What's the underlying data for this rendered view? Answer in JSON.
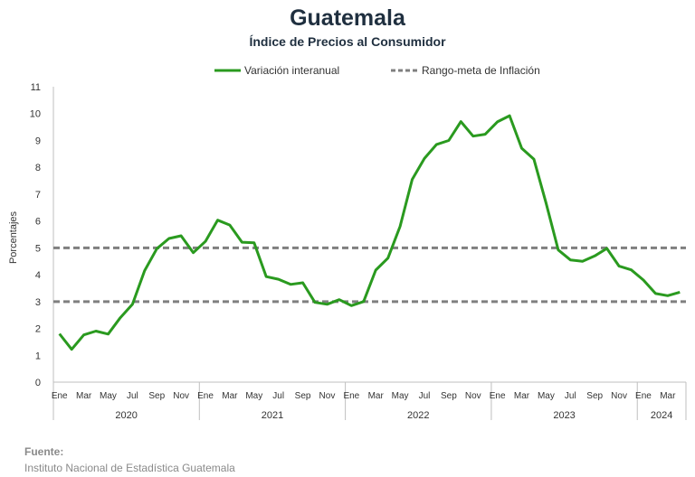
{
  "header": {
    "title": "Guatemala",
    "subtitle": "Índice de Precios al Consumidor"
  },
  "source": {
    "label": "Fuente:",
    "text": "Instituto Nacional de Estadística Guatemala"
  },
  "chart_data": {
    "type": "line",
    "ylabel": "Porcentajes",
    "ylim": [
      0,
      11
    ],
    "yticks": [
      0,
      1,
      2,
      3,
      4,
      5,
      6,
      7,
      8,
      9,
      10,
      11
    ],
    "grid": false,
    "legend_position": "top",
    "month_labels": [
      "Ene",
      "",
      "Mar",
      "",
      "May",
      "",
      "Jul",
      "",
      "Sep",
      "",
      "Nov",
      "",
      "Ene",
      "",
      "Mar",
      "",
      "May",
      "",
      "Jul",
      "",
      "Sep",
      "",
      "Nov",
      "",
      "Ene",
      "",
      "Mar",
      "",
      "May",
      "",
      "Jul",
      "",
      "Sep",
      "",
      "Nov",
      "",
      "Ene",
      "",
      "Mar",
      "",
      "May",
      "",
      "Jul",
      "",
      "Sep",
      "",
      "Nov",
      "",
      "Ene",
      "",
      "Mar",
      ""
    ],
    "years": [
      {
        "label": "2020",
        "months": 12
      },
      {
        "label": "2021",
        "months": 12
      },
      {
        "label": "2022",
        "months": 12
      },
      {
        "label": "2023",
        "months": 12
      },
      {
        "label": "2024",
        "months": 4
      }
    ],
    "series": [
      {
        "name": "Variación interanual",
        "color": "#2a9a1f",
        "style": "solid",
        "values": [
          1.8,
          1.22,
          1.76,
          1.9,
          1.79,
          2.4,
          2.9,
          4.15,
          4.97,
          5.35,
          5.45,
          4.82,
          5.24,
          6.03,
          5.85,
          5.21,
          5.19,
          3.93,
          3.83,
          3.64,
          3.7,
          2.97,
          2.9,
          3.07,
          2.85,
          3.0,
          4.17,
          4.62,
          5.8,
          7.55,
          8.33,
          8.85,
          9.0,
          9.7,
          9.16,
          9.23,
          9.69,
          9.92,
          8.71,
          8.3,
          6.67,
          4.92,
          4.55,
          4.5,
          4.7,
          4.98,
          4.32,
          4.18,
          3.8,
          3.3,
          3.22,
          3.35
        ]
      },
      {
        "name": "Rango-meta de Inflación",
        "color": "#7f7f7f",
        "style": "dashed",
        "lower": 3,
        "upper": 5
      }
    ]
  }
}
